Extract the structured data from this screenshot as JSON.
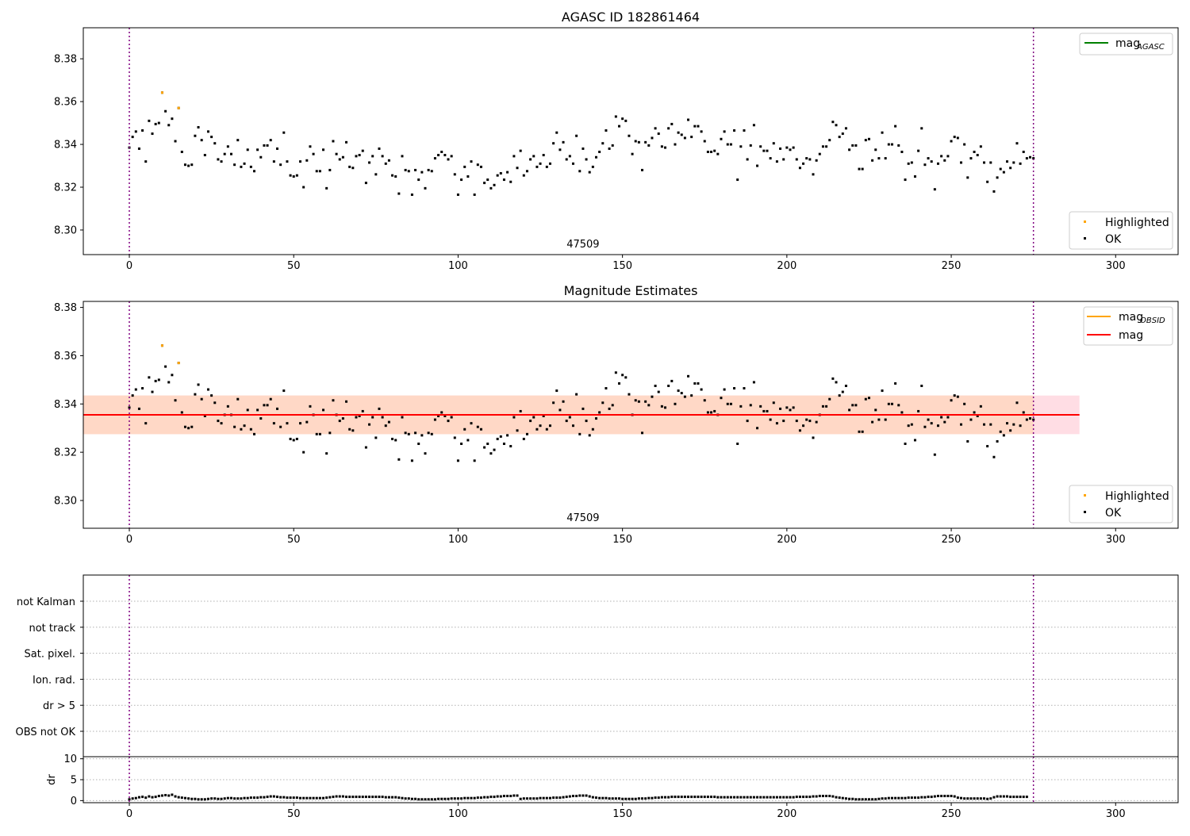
{
  "chart_data": [
    {
      "type": "scatter",
      "title": "AGASC ID 182861464",
      "annotation": "47509",
      "xlim": [
        -14,
        319
      ],
      "ylim": [
        8.2885,
        8.3945
      ],
      "xticks": [
        0,
        50,
        100,
        150,
        200,
        250,
        300
      ],
      "yticks": [
        8.3,
        8.32,
        8.34,
        8.36,
        8.38
      ],
      "ytick_labels": [
        "8.30",
        "8.32",
        "8.34",
        "8.36",
        "8.38"
      ],
      "vlines": [
        0,
        275
      ],
      "legend_upper": [
        {
          "label": "mag",
          "sub": "AGASC",
          "color": "#008000"
        }
      ],
      "legend_lower": [
        {
          "label": "Highlighted",
          "color": "#ffa500"
        },
        {
          "label": "OK",
          "color": "#000000"
        }
      ]
    },
    {
      "type": "scatter",
      "title": "Magnitude Estimates",
      "annotation": "47509",
      "xlim": [
        -14,
        319
      ],
      "ylim": [
        8.2885,
        8.3825
      ],
      "xticks": [
        0,
        50,
        100,
        150,
        200,
        250,
        300
      ],
      "yticks": [
        8.3,
        8.32,
        8.34,
        8.36,
        8.38
      ],
      "ytick_labels": [
        "8.30",
        "8.32",
        "8.34",
        "8.36",
        "8.38"
      ],
      "vlines": [
        0,
        275
      ],
      "mag": 8.3355,
      "mag_band": [
        8.3275,
        8.3435
      ],
      "band_x_end": 289,
      "mag_obsid_x_end": 275,
      "legend_upper": [
        {
          "label": "mag",
          "sub": "OBSID",
          "color": "#ffa500"
        },
        {
          "label": "mag",
          "sub": "",
          "color": "#ff0000"
        }
      ],
      "legend_lower": [
        {
          "label": "Highlighted",
          "color": "#ffa500"
        },
        {
          "label": "OK",
          "color": "#000000"
        }
      ]
    },
    {
      "type": "scatter",
      "title": "",
      "xlim": [
        -14,
        319
      ],
      "categories": [
        "not Kalman",
        "not track",
        "Sat. pixel.",
        "Ion. rad.",
        "dr > 5",
        "OBS not OK"
      ],
      "vlines": [
        0,
        275
      ]
    },
    {
      "type": "scatter",
      "title": "",
      "ylabel": "dr",
      "xlim": [
        -14,
        319
      ],
      "ylim": [
        -0.5,
        10.5
      ],
      "xticks": [
        0,
        50,
        100,
        150,
        200,
        250,
        300
      ],
      "yticks": [
        0,
        5,
        10
      ],
      "ytick_labels": [
        "0",
        "5",
        "10"
      ],
      "vlines": [
        0,
        275
      ]
    }
  ],
  "points": {
    "x_start": 0,
    "highlighted": [
      [
        10,
        8.3642
      ],
      [
        15,
        8.357
      ]
    ],
    "mag_values": [
      8.3385,
      8.3435,
      8.346,
      8.338,
      8.3465,
      8.332,
      8.351,
      8.345,
      8.3495,
      8.35,
      8.3642,
      8.3555,
      8.349,
      8.352,
      8.3415,
      8.357,
      8.3365,
      8.3305,
      8.33,
      8.3305,
      8.344,
      8.348,
      8.342,
      8.335,
      8.346,
      8.3435,
      8.3405,
      8.333,
      8.332,
      8.3355,
      8.339,
      8.3355,
      8.3305,
      8.342,
      8.3295,
      8.331,
      8.3375,
      8.3295,
      8.3275,
      8.3375,
      8.334,
      8.3395,
      8.3395,
      8.342,
      8.332,
      8.338,
      8.3305,
      8.3455,
      8.332,
      8.3255,
      8.325,
      8.3255,
      8.332,
      8.32,
      8.3325,
      8.339,
      8.3355,
      8.3275,
      8.3275,
      8.3375,
      8.3195,
      8.328,
      8.3415,
      8.3355,
      8.333,
      8.334,
      8.341,
      8.3295,
      8.329,
      8.3345,
      8.335,
      8.337,
      8.322,
      8.3315,
      8.3345,
      8.326,
      8.338,
      8.3345,
      8.331,
      8.3325,
      8.3255,
      8.325,
      8.317,
      8.3345,
      8.328,
      8.3275,
      8.3165,
      8.328,
      8.3235,
      8.327,
      8.3195,
      8.328,
      8.3275,
      8.3335,
      8.335,
      8.3365,
      8.335,
      8.333,
      8.3345,
      8.326,
      8.3165,
      8.3235,
      8.3295,
      8.325,
      8.332,
      8.3165,
      8.3305,
      8.3295,
      8.322,
      8.3235,
      8.3195,
      8.321,
      8.3255,
      8.3265,
      8.3235,
      8.327,
      8.3225,
      8.3345,
      8.329,
      8.337,
      8.3255,
      8.3275,
      8.333,
      8.3345,
      8.3295,
      8.331,
      8.335,
      8.3295,
      8.331,
      8.3405,
      8.3455,
      8.3375,
      8.341,
      8.333,
      8.3345,
      8.331,
      8.344,
      8.3275,
      8.338,
      8.333,
      8.327,
      8.3295,
      8.334,
      8.3365,
      8.3405,
      8.3465,
      8.338,
      8.3395,
      8.353,
      8.3485,
      8.352,
      8.351,
      8.344,
      8.3355,
      8.3415,
      8.341,
      8.328,
      8.341,
      8.3395,
      8.343,
      8.3475,
      8.345,
      8.339,
      8.3385,
      8.3475,
      8.3495,
      8.34,
      8.3455,
      8.3445,
      8.343,
      8.3515,
      8.3435,
      8.3485,
      8.3485,
      8.346,
      8.3415,
      8.3365,
      8.3365,
      8.337,
      8.3355,
      8.3425,
      8.346,
      8.34,
      8.34,
      8.3465,
      8.3235,
      8.339,
      8.3465,
      8.333,
      8.3395,
      8.349,
      8.33,
      8.339,
      8.337,
      8.337,
      8.3335,
      8.3405,
      8.332,
      8.338,
      8.333,
      8.3385,
      8.3375,
      8.3385,
      8.333,
      8.329,
      8.331,
      8.3335,
      8.333,
      8.326,
      8.3325,
      8.3355,
      8.339,
      8.339,
      8.342,
      8.3505,
      8.349,
      8.3435,
      8.345,
      8.3475,
      8.3375,
      8.3395,
      8.3395,
      8.3285,
      8.3285,
      8.342,
      8.3425,
      8.3325,
      8.3375,
      8.3335,
      8.3455,
      8.3335,
      8.34,
      8.34,
      8.3485,
      8.3395,
      8.3365,
      8.3235,
      8.331,
      8.3315,
      8.325,
      8.337,
      8.3475,
      8.3305,
      8.3335,
      8.332,
      8.319,
      8.331,
      8.3345,
      8.3325,
      8.3345,
      8.3415,
      8.3435,
      8.343,
      8.3315,
      8.34,
      8.3245,
      8.3335,
      8.3365,
      8.335,
      8.339,
      8.3315,
      8.3225,
      8.3315,
      8.318,
      8.3245,
      8.3285,
      8.327,
      8.332,
      8.329,
      8.3315,
      8.3405,
      8.331,
      8.3365,
      8.3335,
      8.334,
      8.3335
    ],
    "dr_values": [
      0.3,
      0.5,
      0.6,
      0.8,
      0.9,
      0.7,
      1.0,
      0.8,
      0.9,
      1.1,
      1.2,
      1.3,
      1.2,
      1.4,
      1.0,
      0.8,
      0.7,
      0.6,
      0.5,
      0.4,
      0.4,
      0.3,
      0.3,
      0.3,
      0.4,
      0.5,
      0.5,
      0.4,
      0.4,
      0.5,
      0.6,
      0.6,
      0.5,
      0.5,
      0.5,
      0.6,
      0.6,
      0.7,
      0.7,
      0.7,
      0.8,
      0.8,
      0.9,
      1.0,
      1.0,
      0.9,
      0.8,
      0.8,
      0.7,
      0.7,
      0.7,
      0.7,
      0.6,
      0.6,
      0.6,
      0.6,
      0.6,
      0.6,
      0.6,
      0.6,
      0.7,
      0.8,
      0.9,
      1.0,
      1.0,
      1.0,
      0.9,
      0.9,
      0.9,
      0.9,
      0.9,
      0.9,
      0.9,
      0.9,
      0.9,
      0.9,
      0.9,
      0.9,
      0.8,
      0.8,
      0.8,
      0.8,
      0.7,
      0.6,
      0.5,
      0.5,
      0.4,
      0.4,
      0.3,
      0.3,
      0.3,
      0.3,
      0.3,
      0.3,
      0.4,
      0.4,
      0.4,
      0.4,
      0.5,
      0.5,
      0.5,
      0.5,
      0.6,
      0.6,
      0.6,
      0.6,
      0.7,
      0.7,
      0.8,
      0.8,
      0.9,
      0.9,
      1.0,
      1.0,
      1.1,
      1.1,
      1.1,
      1.2,
      1.2,
      0.4,
      0.5,
      0.5,
      0.5,
      0.5,
      0.5,
      0.6,
      0.6,
      0.6,
      0.6,
      0.7,
      0.7,
      0.7,
      0.8,
      0.9,
      1.0,
      1.1,
      1.1,
      1.2,
      1.2,
      1.2,
      1.0,
      0.8,
      0.7,
      0.6,
      0.6,
      0.6,
      0.5,
      0.5,
      0.5,
      0.5,
      0.4,
      0.4,
      0.4,
      0.4,
      0.4,
      0.5,
      0.5,
      0.5,
      0.6,
      0.6,
      0.7,
      0.7,
      0.8,
      0.8,
      0.8,
      0.9,
      0.9,
      0.9,
      0.9,
      0.9,
      0.9,
      0.9,
      0.9,
      0.9,
      0.9,
      0.9,
      0.9,
      0.9,
      0.9,
      0.8,
      0.8,
      0.8,
      0.8,
      0.8,
      0.8,
      0.8,
      0.8,
      0.8,
      0.8,
      0.8,
      0.8,
      0.8,
      0.8,
      0.8,
      0.8,
      0.8,
      0.8,
      0.8,
      0.8,
      0.8,
      0.8,
      0.8,
      0.8,
      0.9,
      0.9,
      0.9,
      0.9,
      0.9,
      1.0,
      1.0,
      1.1,
      1.1,
      1.1,
      1.1,
      1.0,
      0.8,
      0.7,
      0.6,
      0.5,
      0.4,
      0.4,
      0.3,
      0.3,
      0.3,
      0.3,
      0.3,
      0.3,
      0.3,
      0.4,
      0.5,
      0.5,
      0.6,
      0.6,
      0.6,
      0.6,
      0.6,
      0.6,
      0.7,
      0.7,
      0.7,
      0.7,
      0.8,
      0.8,
      0.9,
      0.9,
      1.0,
      1.1,
      1.1,
      1.1,
      1.1,
      1.1,
      1.0,
      0.7,
      0.6,
      0.5,
      0.5,
      0.5,
      0.5,
      0.5,
      0.5,
      0.5,
      0.4,
      0.5,
      0.8,
      1.0,
      1.0,
      1.0,
      1.0,
      0.9,
      0.9,
      0.9,
      0.9,
      0.9,
      0.9
    ]
  }
}
